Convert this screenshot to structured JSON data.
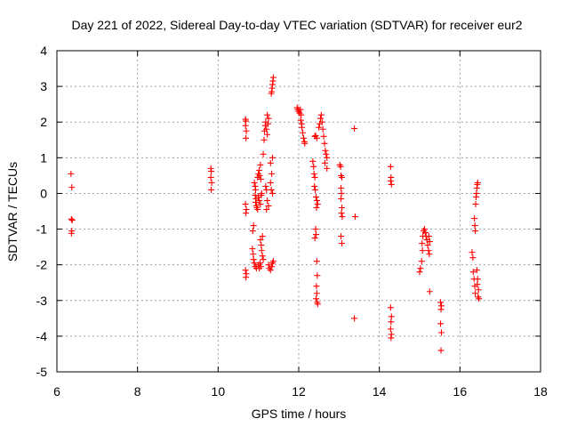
{
  "chart_data": {
    "type": "scatter",
    "title": "Day 221 of 2022, Sidereal Day-to-day VTEC variation (SDTVAR) for receiver eur2",
    "xlabel": "GPS time / hours",
    "ylabel": "SDTVAR / TECUs",
    "xlim": [
      6,
      18
    ],
    "ylim": [
      -5,
      4
    ],
    "x_ticks": [
      6,
      8,
      10,
      12,
      14,
      16,
      18
    ],
    "y_ticks": [
      -5,
      -4,
      -3,
      -2,
      -1,
      0,
      1,
      2,
      3,
      4
    ],
    "x_tick_labels": [
      "6",
      "8",
      "10",
      "12",
      "14",
      "16",
      "18"
    ],
    "y_tick_labels": [
      "-5",
      "-4",
      "-3",
      "-2",
      "-1",
      "0",
      "1",
      "2",
      "3",
      "4"
    ],
    "grid": true,
    "marker": "+",
    "marker_color": "#ff0000",
    "series": [
      {
        "name": "SDTVAR",
        "points": [
          [
            6.35,
            0.55
          ],
          [
            6.37,
            0.17
          ],
          [
            6.36,
            -0.72
          ],
          [
            6.38,
            -0.75
          ],
          [
            6.37,
            -1.05
          ],
          [
            6.36,
            -1.12
          ],
          [
            9.82,
            0.7
          ],
          [
            9.83,
            0.62
          ],
          [
            9.82,
            0.45
          ],
          [
            9.84,
            0.3
          ],
          [
            9.83,
            0.1
          ],
          [
            10.68,
            2.08
          ],
          [
            10.69,
            2.03
          ],
          [
            10.68,
            1.9
          ],
          [
            10.7,
            1.75
          ],
          [
            10.69,
            1.55
          ],
          [
            10.68,
            -0.3
          ],
          [
            10.7,
            -0.45
          ],
          [
            10.69,
            -0.55
          ],
          [
            10.68,
            -2.15
          ],
          [
            10.7,
            -2.25
          ],
          [
            10.69,
            -2.35
          ],
          [
            10.85,
            -1.55
          ],
          [
            10.87,
            -1.7
          ],
          [
            10.88,
            -1.85
          ],
          [
            10.9,
            -1.95
          ],
          [
            10.92,
            -2.05
          ],
          [
            10.95,
            -2.1
          ],
          [
            10.86,
            -1.05
          ],
          [
            10.88,
            -0.9
          ],
          [
            10.9,
            0.3
          ],
          [
            10.92,
            0.2
          ],
          [
            10.93,
            0.1
          ],
          [
            10.92,
            -0.05
          ],
          [
            10.94,
            -0.15
          ],
          [
            10.93,
            -0.25
          ],
          [
            10.95,
            -0.35
          ],
          [
            10.96,
            -0.4
          ],
          [
            10.98,
            -0.45
          ],
          [
            10.98,
            0.45
          ],
          [
            11.0,
            0.55
          ],
          [
            11.02,
            0.65
          ],
          [
            11.05,
            0.8
          ],
          [
            11.03,
            0.5
          ],
          [
            11.06,
            0.4
          ],
          [
            11.0,
            -0.1
          ],
          [
            11.02,
            -0.2
          ],
          [
            11.05,
            -0.3
          ],
          [
            11.07,
            -0.05
          ],
          [
            11.08,
            0.0
          ],
          [
            11.0,
            -2.0
          ],
          [
            11.02,
            -2.1
          ],
          [
            11.04,
            -1.95
          ],
          [
            11.06,
            -2.05
          ],
          [
            11.05,
            -1.3
          ],
          [
            11.07,
            -1.45
          ],
          [
            11.08,
            -1.6
          ],
          [
            11.1,
            -1.75
          ],
          [
            11.12,
            -1.85
          ],
          [
            11.1,
            -1.2
          ],
          [
            11.12,
            1.1
          ],
          [
            11.14,
            1.5
          ],
          [
            11.15,
            1.75
          ],
          [
            11.17,
            1.9
          ],
          [
            11.18,
            2.0
          ],
          [
            11.2,
            1.8
          ],
          [
            11.22,
            1.65
          ],
          [
            11.24,
            1.95
          ],
          [
            11.25,
            2.1
          ],
          [
            11.22,
            2.2
          ],
          [
            11.18,
            0.2
          ],
          [
            11.2,
            0.1
          ],
          [
            11.22,
            -0.2
          ],
          [
            11.25,
            -0.35
          ],
          [
            11.2,
            -0.45
          ],
          [
            11.25,
            -2.0
          ],
          [
            11.27,
            -2.1
          ],
          [
            11.3,
            -2.15
          ],
          [
            11.33,
            -2.05
          ],
          [
            11.35,
            -1.95
          ],
          [
            11.37,
            -1.9
          ],
          [
            11.3,
            0.3
          ],
          [
            11.32,
            0.1
          ],
          [
            11.35,
            0.0
          ],
          [
            11.33,
            0.55
          ],
          [
            11.3,
            0.85
          ],
          [
            11.35,
            1.0
          ],
          [
            11.32,
            2.8
          ],
          [
            11.33,
            2.85
          ],
          [
            11.34,
            2.95
          ],
          [
            11.35,
            3.05
          ],
          [
            11.36,
            3.15
          ],
          [
            11.37,
            3.25
          ],
          [
            11.96,
            2.4
          ],
          [
            11.98,
            2.35
          ],
          [
            12.0,
            2.3
          ],
          [
            12.02,
            2.25
          ],
          [
            12.04,
            2.35
          ],
          [
            12.06,
            2.2
          ],
          [
            12.05,
            2.05
          ],
          [
            12.07,
            1.95
          ],
          [
            12.08,
            1.85
          ],
          [
            12.1,
            1.7
          ],
          [
            12.12,
            1.55
          ],
          [
            12.14,
            1.45
          ],
          [
            12.15,
            1.4
          ],
          [
            12.35,
            0.9
          ],
          [
            12.37,
            0.75
          ],
          [
            12.38,
            0.55
          ],
          [
            12.4,
            0.45
          ],
          [
            12.39,
            0.2
          ],
          [
            12.41,
            0.1
          ],
          [
            12.43,
            -0.1
          ],
          [
            12.45,
            -0.2
          ],
          [
            12.47,
            -0.3
          ],
          [
            12.44,
            -0.4
          ],
          [
            12.4,
            -1.25
          ],
          [
            12.43,
            -1.15
          ],
          [
            12.42,
            -1.0
          ],
          [
            12.45,
            -1.9
          ],
          [
            12.46,
            -2.3
          ],
          [
            12.44,
            -2.6
          ],
          [
            12.45,
            -2.8
          ],
          [
            12.43,
            -2.95
          ],
          [
            12.46,
            -3.05
          ],
          [
            12.47,
            -3.1
          ],
          [
            12.4,
            1.6
          ],
          [
            12.42,
            1.62
          ],
          [
            12.45,
            1.55
          ],
          [
            12.5,
            1.85
          ],
          [
            12.52,
            1.95
          ],
          [
            12.54,
            2.1
          ],
          [
            12.56,
            2.2
          ],
          [
            12.58,
            2.0
          ],
          [
            12.6,
            1.8
          ],
          [
            12.62,
            1.6
          ],
          [
            12.64,
            1.4
          ],
          [
            12.66,
            1.2
          ],
          [
            12.68,
            1.1
          ],
          [
            12.7,
            1.0
          ],
          [
            12.65,
            0.85
          ],
          [
            12.7,
            0.7
          ],
          [
            13.02,
            0.8
          ],
          [
            13.04,
            0.75
          ],
          [
            13.05,
            0.5
          ],
          [
            13.07,
            0.45
          ],
          [
            13.05,
            0.15
          ],
          [
            13.06,
            0.0
          ],
          [
            13.05,
            -0.15
          ],
          [
            13.07,
            -0.4
          ],
          [
            13.06,
            -0.55
          ],
          [
            13.08,
            -0.65
          ],
          [
            13.05,
            -1.2
          ],
          [
            13.07,
            -1.4
          ],
          [
            13.38,
            1.82
          ],
          [
            13.4,
            -0.65
          ],
          [
            13.38,
            -3.5
          ],
          [
            14.28,
            0.75
          ],
          [
            14.29,
            0.45
          ],
          [
            14.28,
            0.35
          ],
          [
            14.3,
            0.25
          ],
          [
            14.28,
            -3.2
          ],
          [
            14.3,
            -3.45
          ],
          [
            14.29,
            -3.6
          ],
          [
            14.28,
            -3.8
          ],
          [
            14.3,
            -3.95
          ],
          [
            14.29,
            -4.05
          ],
          [
            15.0,
            -2.2
          ],
          [
            15.02,
            -2.1
          ],
          [
            15.05,
            -1.9
          ],
          [
            15.07,
            -1.6
          ],
          [
            15.06,
            -1.4
          ],
          [
            15.08,
            -1.2
          ],
          [
            15.1,
            -1.05
          ],
          [
            15.12,
            -1.0
          ],
          [
            15.14,
            -1.1
          ],
          [
            15.16,
            -1.2
          ],
          [
            15.18,
            -1.3
          ],
          [
            15.2,
            -1.45
          ],
          [
            15.22,
            -1.6
          ],
          [
            15.24,
            -1.7
          ],
          [
            15.23,
            -1.2
          ],
          [
            15.25,
            -1.35
          ],
          [
            15.25,
            -2.75
          ],
          [
            15.52,
            -3.05
          ],
          [
            15.54,
            -3.15
          ],
          [
            15.53,
            -3.25
          ],
          [
            15.52,
            -3.65
          ],
          [
            15.54,
            -3.9
          ],
          [
            15.53,
            -4.4
          ],
          [
            16.3,
            -1.65
          ],
          [
            16.32,
            -1.8
          ],
          [
            16.33,
            -2.2
          ],
          [
            16.35,
            -2.4
          ],
          [
            16.37,
            -2.6
          ],
          [
            16.38,
            -2.8
          ],
          [
            16.36,
            -0.7
          ],
          [
            16.37,
            -0.9
          ],
          [
            16.38,
            -1.05
          ],
          [
            16.39,
            -0.3
          ],
          [
            16.4,
            -0.1
          ],
          [
            16.41,
            0.0
          ],
          [
            16.42,
            0.15
          ],
          [
            16.43,
            0.25
          ],
          [
            16.44,
            0.3
          ],
          [
            16.42,
            -2.15
          ],
          [
            16.44,
            -2.4
          ],
          [
            16.46,
            -2.7
          ],
          [
            16.45,
            -2.9
          ],
          [
            16.47,
            -2.95
          ],
          [
            16.43,
            -2.55
          ]
        ]
      }
    ]
  }
}
